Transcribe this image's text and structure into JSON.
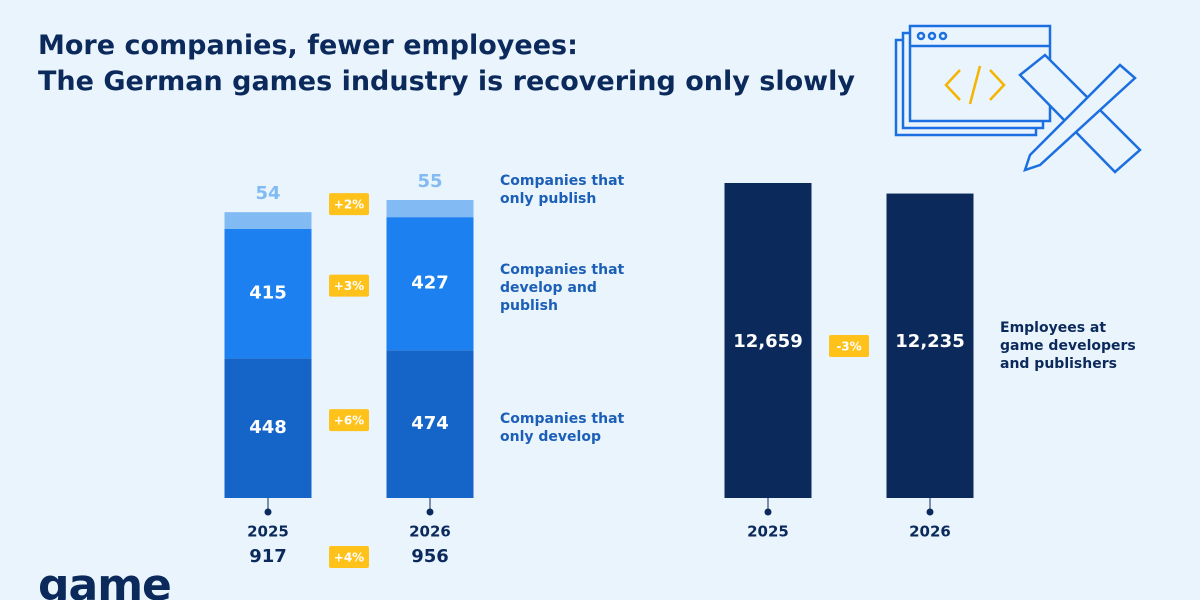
{
  "header": {
    "title": [
      "More companies, fewer employees:",
      "The German games industry is recovering only slowly"
    ]
  },
  "chart_data": [
    {
      "type": "stacked_bar",
      "categories": [
        "2025",
        "2026"
      ],
      "series": [
        {
          "name": "Companies that only develop",
          "color": "#1565c9",
          "values": [
            448,
            474
          ],
          "change_label": "+6%"
        },
        {
          "name": "Companies that develop and publish",
          "color": "#1c80f0",
          "values": [
            415,
            427
          ],
          "change_label": "+3%"
        },
        {
          "name": "Companies that only publish",
          "color": "#82bbf3",
          "values": [
            54,
            55
          ],
          "change_label": "+2%"
        }
      ],
      "totals": [
        917,
        956
      ],
      "total_change_label": "+4%"
    },
    {
      "type": "bar",
      "categories": [
        "2025",
        "2026"
      ],
      "series": [
        {
          "name": "Employees at game developers and publishers",
          "color": "#0b2a5b",
          "values": [
            12659,
            12235
          ],
          "value_labels": [
            "12,659",
            "12,235"
          ],
          "change_label": "-3%"
        }
      ]
    }
  ],
  "logo": "game"
}
